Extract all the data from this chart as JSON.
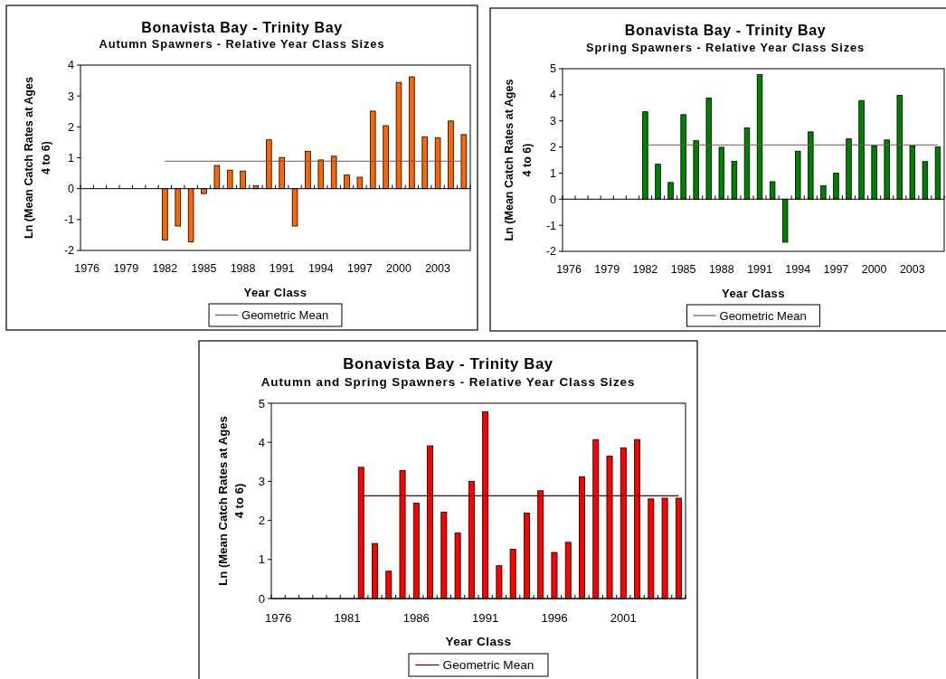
{
  "chart_data": [
    {
      "type": "bar",
      "title": "Bonavista Bay - Trinity Bay",
      "subtitle": "Autumn Spawners - Relative Year Class Sizes",
      "xlabel": "Year Class",
      "ylabel": "Ln (Mean Catch Rates at Ages\n4 to 6)",
      "categories": [
        "1976",
        null,
        null,
        "1979",
        null,
        null,
        "1982",
        null,
        null,
        "1985",
        null,
        null,
        "1988",
        null,
        null,
        "1991",
        null,
        null,
        "1994",
        null,
        null,
        "1997",
        null,
        null,
        "2000",
        null,
        null,
        "2003",
        null,
        null
      ],
      "series": [
        {
          "color": "#ff6600",
          "values": [
            null,
            null,
            null,
            null,
            null,
            null,
            -1.66,
            -1.21,
            -1.72,
            -0.16,
            0.75,
            0.6,
            0.57,
            0.09,
            1.58,
            1.01,
            -1.21,
            1.21,
            0.93,
            1.05,
            0.44,
            0.37,
            2.51,
            2.04,
            3.44,
            3.62,
            1.68,
            1.65,
            2.19,
            1.75
          ]
        },
        {
          "type": "line",
          "name": "Geometric Mean",
          "color": "#7f5050",
          "values": [
            null,
            null,
            null,
            null,
            null,
            null,
            0.89,
            0.89,
            0.89,
            0.89,
            0.89,
            0.89,
            0.89,
            0.89,
            0.89,
            0.89,
            0.89,
            0.89,
            0.89,
            0.89,
            0.89,
            0.89,
            0.89,
            0.89,
            0.89,
            0.89,
            0.89,
            0.89,
            0.89,
            0.89
          ]
        }
      ],
      "ylim": [
        -2,
        4
      ],
      "yticks": [
        -2,
        -1,
        0,
        1,
        2,
        3,
        4
      ],
      "legend": "bottom"
    },
    {
      "type": "bar",
      "title": "Bonavista Bay - Trinity Bay",
      "subtitle": "Spring Spawners - Relative Year Class Sizes",
      "xlabel": "Year Class",
      "ylabel": "Ln (Mean Catch Rates at Ages\n4 to 6)",
      "categories": [
        "1976",
        null,
        null,
        "1979",
        null,
        null,
        "1982",
        null,
        null,
        "1985",
        null,
        null,
        "1988",
        null,
        null,
        "1991",
        null,
        null,
        "1994",
        null,
        null,
        "1997",
        null,
        null,
        "2000",
        null,
        null,
        "2003",
        null,
        null
      ],
      "series": [
        {
          "color": "#008000",
          "values": [
            null,
            null,
            null,
            null,
            null,
            null,
            3.35,
            1.34,
            0.64,
            3.24,
            2.24,
            3.88,
            1.99,
            1.45,
            2.73,
            4.78,
            0.67,
            -1.65,
            1.84,
            2.58,
            0.52,
            1.0,
            2.31,
            3.78,
            2.04,
            2.27,
            3.98,
            2.04,
            1.44,
            2.0
          ]
        },
        {
          "type": "line",
          "name": "Geometric Mean",
          "color": "#7f5050",
          "values": [
            null,
            null,
            null,
            null,
            null,
            null,
            2.08,
            2.08,
            2.08,
            2.08,
            2.08,
            2.08,
            2.08,
            2.08,
            2.08,
            2.08,
            2.08,
            2.08,
            2.08,
            2.08,
            2.08,
            2.08,
            2.08,
            2.08,
            2.08,
            2.08,
            2.08,
            2.08,
            2.08,
            2.08
          ]
        }
      ],
      "ylim": [
        -2,
        5
      ],
      "yticks": [
        -2,
        -1,
        0,
        1,
        2,
        3,
        4,
        5
      ],
      "legend": "bottom"
    },
    {
      "type": "bar",
      "title": "Bonavista Bay - Trinity Bay",
      "subtitle": "Autumn and Spring Spawners - Relative Year Class Sizes",
      "xlabel": "Year Class",
      "ylabel": "Ln (Mean Catch Rates at Ages\n4 to 6)",
      "categories": [
        "1976",
        null,
        null,
        null,
        null,
        "1981",
        null,
        null,
        null,
        null,
        "1986",
        null,
        null,
        null,
        null,
        "1991",
        null,
        null,
        null,
        null,
        "1996",
        null,
        null,
        null,
        null,
        "2001",
        null,
        null,
        null,
        null
      ],
      "series": [
        {
          "color": "#ff0000",
          "values": [
            null,
            null,
            null,
            null,
            null,
            null,
            3.36,
            1.41,
            0.7,
            3.28,
            2.44,
            3.91,
            2.21,
            1.68,
            3.0,
            4.78,
            0.84,
            1.26,
            2.19,
            2.76,
            1.18,
            1.44,
            3.12,
            4.07,
            3.65,
            3.86,
            4.07,
            2.55,
            2.57,
            2.57
          ]
        },
        {
          "type": "line",
          "name": "Geometric Mean",
          "color": "#600000",
          "values": [
            null,
            null,
            null,
            null,
            null,
            null,
            2.63,
            2.63,
            2.63,
            2.63,
            2.63,
            2.63,
            2.63,
            2.63,
            2.63,
            2.63,
            2.63,
            2.63,
            2.63,
            2.63,
            2.63,
            2.63,
            2.63,
            2.63,
            2.63,
            2.63,
            2.63,
            2.63,
            2.63,
            2.63
          ]
        }
      ],
      "ylim": [
        0,
        5
      ],
      "yticks": [
        0,
        1,
        2,
        3,
        4,
        5
      ],
      "legend": "bottom"
    }
  ]
}
